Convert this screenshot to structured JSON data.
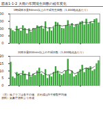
{
  "title": "図表1-1-2 大雨の年間発生回数の経年変化",
  "chart_data": [
    {
      "type": "bar",
      "title": "1時間降水量50mm以上の年間発生回数（1,000地点あたり）",
      "x": [
        1976,
        1977,
        1978,
        1979,
        1980,
        1981,
        1982,
        1983,
        1984,
        1985,
        1986,
        1987,
        1988,
        1989,
        1990,
        1991,
        1992,
        1993,
        1994,
        1995,
        1996,
        1997,
        1998,
        1999,
        2000,
        2001,
        2002,
        2003,
        2004,
        2005,
        2006,
        2007,
        2008,
        2009,
        2010,
        2011,
        2012,
        2013,
        2014,
        2015,
        2016,
        2017,
        2018,
        2019
      ],
      "values": [
        200,
        174,
        160,
        231,
        190,
        168,
        241,
        205,
        131,
        200,
        155,
        204,
        196,
        240,
        226,
        230,
        198,
        295,
        162,
        215,
        170,
        218,
        290,
        280,
        245,
        205,
        200,
        245,
        310,
        240,
        270,
        220,
        255,
        250,
        290,
        300,
        250,
        330,
        260,
        290,
        270,
        325,
        335,
        280
      ],
      "moving_average": [
        null,
        null,
        191,
        185,
        198,
        207,
        187,
        189,
        186,
        179,
        177,
        199,
        204,
        219,
        218,
        238,
        222,
        220,
        208,
        212,
        211,
        235,
        241,
        248,
        244,
        235,
        241,
        240,
        253,
        257,
        259,
        247,
        257,
        263,
        269,
        284,
        286,
        286,
        280,
        295,
        296,
        300,
        null,
        null
      ],
      "color": "#3aa63a",
      "ylim": [
        0,
        400
      ],
      "yticks": [
        0,
        100,
        200,
        300,
        400
      ],
      "xticks": [
        1980,
        1990,
        2000,
        2010
      ],
      "grid": false
    },
    {
      "type": "bar",
      "title": "日降水量200mm以上の年間日数（1,000地点あたり）",
      "x": [
        1976,
        1977,
        1978,
        1979,
        1980,
        1981,
        1982,
        1983,
        1984,
        1985,
        1986,
        1987,
        1988,
        1989,
        1990,
        1991,
        1992,
        1993,
        1994,
        1995,
        1996,
        1997,
        1998,
        1999,
        2000,
        2001,
        2002,
        2003,
        2004,
        2005,
        2006,
        2007,
        2008,
        2009,
        2010,
        2011,
        2012,
        2013,
        2014,
        2015,
        2016,
        2017,
        2018,
        2019
      ],
      "values": [
        16,
        6,
        5,
        9,
        8,
        7,
        10,
        8,
        4,
        9,
        6,
        8,
        7,
        10,
        12,
        8,
        7,
        11,
        5,
        7,
        6,
        9,
        13,
        10,
        8,
        7,
        8,
        10,
        18,
        8,
        10,
        6,
        7,
        9,
        11,
        14,
        9,
        12,
        12,
        13,
        10,
        11,
        15,
        17
      ],
      "moving_average": [
        null,
        null,
        8.8,
        7.0,
        7.8,
        8.4,
        7.4,
        7.6,
        7.4,
        7.0,
        6.8,
        8.0,
        8.6,
        9.0,
        8.8,
        9.6,
        8.6,
        7.6,
        7.2,
        7.6,
        8.0,
        9.0,
        9.2,
        9.4,
        9.2,
        8.6,
        10.2,
        10.2,
        10.8,
        10.4,
        9.8,
        8.0,
        8.6,
        9.4,
        10.0,
        11.0,
        11.6,
        12.0,
        11.2,
        11.6,
        12.2,
        13.2,
        null,
        null
      ],
      "color": "#3aa63a",
      "ylim": [
        0,
        20
      ],
      "yticks": [
        0,
        5,
        10,
        15,
        20
      ],
      "xticks": [
        1980,
        1990,
        2000,
        2010
      ],
      "grid": false
    }
  ],
  "note": [
    "（注）棒グラフは各年の値、折れ線は5年移動平均値",
    "資料）気象庁資料より作成"
  ]
}
